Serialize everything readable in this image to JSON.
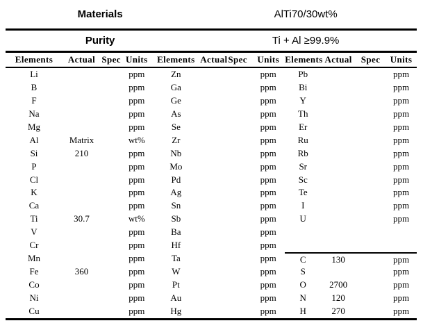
{
  "page": {
    "background": "#ffffff",
    "text_color": "#000000",
    "line_color": "#000000"
  },
  "header": {
    "rows": [
      {
        "label": "Materials",
        "value": "AlTi70/30wt%"
      },
      {
        "label": "Purity",
        "value": "Ti + Al ≥99.9%"
      }
    ]
  },
  "table": {
    "column_headers": [
      "Elements",
      "Actual",
      "Spec",
      "Units",
      "Elements",
      "Actual",
      "Spec",
      "Units",
      "Elements",
      "Actual",
      "Spec",
      "Units"
    ],
    "column_types": [
      "element",
      "actual",
      "spec",
      "units"
    ],
    "rows": [
      [
        "Li",
        "",
        "",
        "ppm",
        "Zn",
        "",
        "",
        "ppm",
        "Pb",
        "",
        "",
        "ppm"
      ],
      [
        "B",
        "",
        "",
        "ppm",
        "Ga",
        "",
        "",
        "ppm",
        "Bi",
        "",
        "",
        "ppm"
      ],
      [
        "F",
        "",
        "",
        "ppm",
        "Ge",
        "",
        "",
        "ppm",
        "Y",
        "",
        "",
        "ppm"
      ],
      [
        "Na",
        "",
        "",
        "ppm",
        "As",
        "",
        "",
        "ppm",
        "Th",
        "",
        "",
        "ppm"
      ],
      [
        "Mg",
        "",
        "",
        "ppm",
        "Se",
        "",
        "",
        "ppm",
        "Er",
        "",
        "",
        "ppm"
      ],
      [
        "Al",
        "Matrix",
        "",
        "wt%",
        "Zr",
        "",
        "",
        "ppm",
        "Ru",
        "",
        "",
        "ppm"
      ],
      [
        "Si",
        "210",
        "",
        "ppm",
        "Nb",
        "",
        "",
        "ppm",
        "Rb",
        "",
        "",
        "ppm"
      ],
      [
        "P",
        "",
        "",
        "ppm",
        "Mo",
        "",
        "",
        "ppm",
        "Sr",
        "",
        "",
        "ppm"
      ],
      [
        "Cl",
        "",
        "",
        "ppm",
        "Pd",
        "",
        "",
        "ppm",
        "Sc",
        "",
        "",
        "ppm"
      ],
      [
        "K",
        "",
        "",
        "ppm",
        "Ag",
        "",
        "",
        "ppm",
        "Te",
        "",
        "",
        "ppm"
      ],
      [
        "Ca",
        "",
        "",
        "ppm",
        "Sn",
        "",
        "",
        "ppm",
        "I",
        "",
        "",
        "ppm"
      ],
      [
        "Ti",
        "30.7",
        "",
        "wt%",
        "Sb",
        "",
        "",
        "ppm",
        "U",
        "",
        "",
        "ppm"
      ],
      [
        "V",
        "",
        "",
        "ppm",
        "Ba",
        "",
        "",
        "ppm",
        "",
        "",
        "",
        ""
      ],
      [
        "Cr",
        "",
        "",
        "ppm",
        "Hf",
        "",
        "",
        "ppm",
        "",
        "",
        "",
        ""
      ],
      [
        "Mn",
        "",
        "",
        "ppm",
        "Ta",
        "",
        "",
        "ppm",
        "C",
        "130",
        "",
        "ppm"
      ],
      [
        "Fe",
        "360",
        "",
        "ppm",
        "W",
        "",
        "",
        "ppm",
        "S",
        "",
        "",
        "ppm"
      ],
      [
        "Co",
        "",
        "",
        "ppm",
        "Pt",
        "",
        "",
        "ppm",
        "O",
        "2700",
        "",
        "ppm"
      ],
      [
        "Ni",
        "",
        "",
        "ppm",
        "Au",
        "",
        "",
        "ppm",
        "N",
        "120",
        "",
        "ppm"
      ],
      [
        "Cu",
        "",
        "",
        "ppm",
        "Hg",
        "",
        "",
        "ppm",
        "H",
        "270",
        "",
        "ppm"
      ]
    ],
    "group3_separator": {
      "before_row": 15,
      "from_column": 9,
      "to_column": 12
    }
  }
}
